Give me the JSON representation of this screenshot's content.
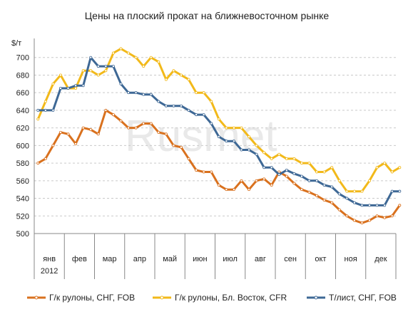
{
  "chart_data": {
    "type": "line",
    "title": "Цены на плоский прокат на ближневосточном рынке",
    "ylabel": "$/т",
    "ylim": [
      500,
      720
    ],
    "yticks": [
      500,
      520,
      540,
      560,
      580,
      600,
      620,
      640,
      660,
      680,
      700
    ],
    "grid": true,
    "legend_position": "bottom",
    "watermark": "Rusmet",
    "months": [
      "янв",
      "фев",
      "мар",
      "апр",
      "май",
      "июн",
      "июл",
      "авг",
      "сен",
      "окт",
      "ноя",
      "дек"
    ],
    "year_label": "2012",
    "points_per_month": 4,
    "series": [
      {
        "name": "Г/к рулоны, СНГ, FOB",
        "color": "#D9711E",
        "values": [
          580,
          585,
          600,
          615,
          613,
          602,
          620,
          618,
          613,
          640,
          635,
          628,
          620,
          620,
          625,
          625,
          615,
          613,
          600,
          598,
          585,
          572,
          570,
          570,
          555,
          550,
          550,
          560,
          550,
          560,
          562,
          555,
          570,
          565,
          557,
          550,
          547,
          543,
          538,
          535,
          527,
          520,
          515,
          512,
          515,
          520,
          518,
          520,
          532
        ]
      },
      {
        "name": "Г/к рулоны, Бл. Восток, CFR",
        "color": "#F2B91A",
        "values": [
          630,
          650,
          670,
          680,
          665,
          665,
          685,
          685,
          680,
          685,
          705,
          710,
          705,
          700,
          690,
          700,
          695,
          675,
          685,
          680,
          675,
          660,
          660,
          650,
          630,
          620,
          620,
          620,
          610,
          600,
          592,
          585,
          590,
          585,
          585,
          580,
          580,
          570,
          570,
          575,
          560,
          548,
          548,
          548,
          560,
          575,
          580,
          570,
          575
        ]
      },
      {
        "name": "Т/лист, СНГ, FOB",
        "color": "#3E6895",
        "values": [
          640,
          640,
          640,
          665,
          665,
          668,
          668,
          700,
          690,
          690,
          690,
          670,
          660,
          660,
          658,
          658,
          650,
          645,
          645,
          645,
          640,
          635,
          635,
          625,
          610,
          605,
          605,
          595,
          595,
          590,
          575,
          575,
          567,
          572,
          568,
          565,
          560,
          560,
          555,
          553,
          545,
          540,
          535,
          532,
          532,
          532,
          532,
          548,
          548
        ]
      }
    ]
  }
}
